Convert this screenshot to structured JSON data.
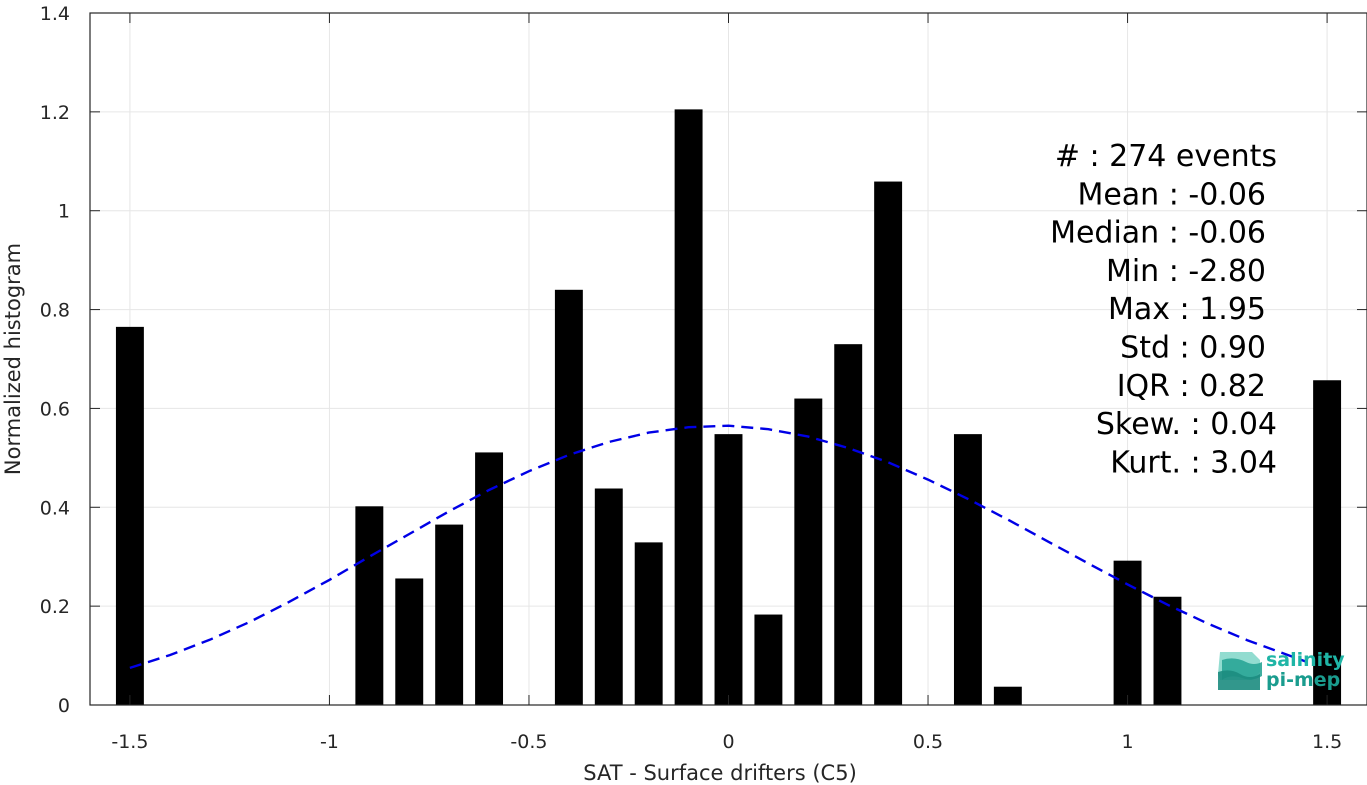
{
  "chart_data": {
    "type": "bar",
    "xlabel": "SAT - Surface drifters (C5)",
    "ylabel": "Normalized histogram",
    "xlim": [
      -1.6,
      1.6
    ],
    "ylim": [
      0,
      1.4
    ],
    "grid": true,
    "xticks": [
      -1.5,
      -1,
      -0.5,
      0,
      0.5,
      1,
      1.5
    ],
    "xtick_labels": [
      "-1.5",
      "-1",
      "-0.5",
      "0",
      "0.5",
      "1",
      "1.5"
    ],
    "yticks": [
      0,
      0.2,
      0.4,
      0.6,
      0.8,
      1.0,
      1.2,
      1.4
    ],
    "ytick_labels": [
      "0",
      "0.2",
      "0.4",
      "0.6",
      "0.8",
      "1",
      "1.2",
      "1.4"
    ],
    "bar_width": 0.07,
    "bars": [
      {
        "x": -1.5,
        "value": 0.765
      },
      {
        "x": -0.9,
        "value": 0.402
      },
      {
        "x": -0.8,
        "value": 0.256
      },
      {
        "x": -0.7,
        "value": 0.365
      },
      {
        "x": -0.6,
        "value": 0.511
      },
      {
        "x": -0.4,
        "value": 0.84
      },
      {
        "x": -0.3,
        "value": 0.438
      },
      {
        "x": -0.2,
        "value": 0.329
      },
      {
        "x": -0.1,
        "value": 1.205
      },
      {
        "x": 0.0,
        "value": 0.548
      },
      {
        "x": 0.1,
        "value": 0.183
      },
      {
        "x": 0.2,
        "value": 0.62
      },
      {
        "x": 0.3,
        "value": 0.73
      },
      {
        "x": 0.4,
        "value": 1.059
      },
      {
        "x": 0.6,
        "value": 0.548
      },
      {
        "x": 0.7,
        "value": 0.037
      },
      {
        "x": 1.0,
        "value": 0.292
      },
      {
        "x": 1.1,
        "value": 0.219
      },
      {
        "x": 1.5,
        "value": 0.657
      }
    ],
    "fit_curve": {
      "style": "dashed",
      "color": "#0000e6",
      "x": [
        -1.5,
        -1.4,
        -1.3,
        -1.2,
        -1.1,
        -1.0,
        -0.9,
        -0.8,
        -0.7,
        -0.6,
        -0.5,
        -0.4,
        -0.3,
        -0.2,
        -0.1,
        0.0,
        0.1,
        0.2,
        0.3,
        0.4,
        0.5,
        0.6,
        0.7,
        0.8,
        0.9,
        1.0,
        1.1,
        1.2,
        1.3,
        1.45
      ],
      "y": [
        0.075,
        0.101,
        0.132,
        0.168,
        0.209,
        0.253,
        0.3,
        0.346,
        0.392,
        0.435,
        0.473,
        0.506,
        0.532,
        0.551,
        0.562,
        0.565,
        0.558,
        0.543,
        0.52,
        0.491,
        0.456,
        0.417,
        0.375,
        0.331,
        0.287,
        0.244,
        0.203,
        0.165,
        0.131,
        0.087
      ]
    },
    "bar_color": "#000000",
    "stats": [
      "#  : 274 events",
      "Mean : -0.06",
      "Median : -0.06",
      "Min : -2.80",
      "Max : 1.95",
      "Std : 0.90",
      "IQR : 0.82",
      "Skew. : 0.04",
      "Kurt. : 3.04"
    ],
    "stats_placement": "top-right"
  },
  "logo": {
    "line1": "salinity",
    "line2": "pi-mep",
    "color1": "#1fb5a6",
    "color2": "#1a9c8e"
  }
}
